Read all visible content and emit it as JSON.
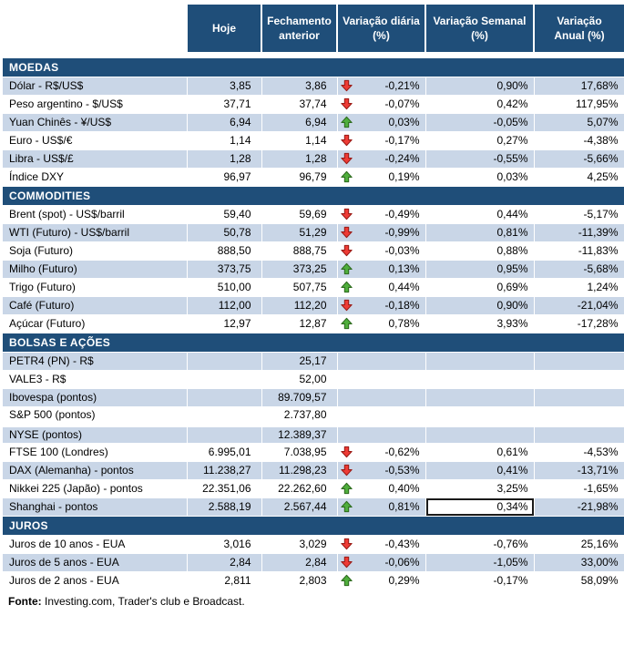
{
  "header": {
    "columns": [
      "Hoje",
      "Fechamento\nanterior",
      "Variação diária\n(%)",
      "Variação Semanal\n(%)",
      "Variação\nAnual (%)"
    ]
  },
  "sections": [
    {
      "title": "MOEDAS",
      "band_start": "shaded",
      "rows": [
        {
          "label": "Dólar - R$/US$",
          "hoje": "3,85",
          "fechamento": "3,86",
          "arrow": "down",
          "diaria": "-0,21%",
          "semanal": "0,90%",
          "anual": "17,68%"
        },
        {
          "label": "Peso argentino - $/US$",
          "hoje": "37,71",
          "fechamento": "37,74",
          "arrow": "down",
          "diaria": "-0,07%",
          "semanal": "0,42%",
          "anual": "117,95%"
        },
        {
          "label": "Yuan Chinês - ¥/US$",
          "hoje": "6,94",
          "fechamento": "6,94",
          "arrow": "up",
          "diaria": "0,03%",
          "semanal": "-0,05%",
          "anual": "5,07%"
        },
        {
          "label": "Euro - US$/€",
          "hoje": "1,14",
          "fechamento": "1,14",
          "arrow": "down",
          "diaria": "-0,17%",
          "semanal": "0,27%",
          "anual": "-4,38%"
        },
        {
          "label": "Libra - US$/£",
          "hoje": "1,28",
          "fechamento": "1,28",
          "arrow": "down",
          "diaria": "-0,24%",
          "semanal": "-0,55%",
          "anual": "-5,66%"
        },
        {
          "label": "Índice DXY",
          "hoje": "96,97",
          "fechamento": "96,79",
          "arrow": "up",
          "diaria": "0,19%",
          "semanal": "0,03%",
          "anual": "4,25%"
        }
      ]
    },
    {
      "title": "COMMODITIES",
      "band_start": "plain",
      "rows": [
        {
          "label": "Brent (spot) - US$/barril",
          "hoje": "59,40",
          "fechamento": "59,69",
          "arrow": "down",
          "diaria": "-0,49%",
          "semanal": "0,44%",
          "anual": "-5,17%"
        },
        {
          "label": "WTI (Futuro) - US$/barril",
          "hoje": "50,78",
          "fechamento": "51,29",
          "arrow": "down",
          "diaria": "-0,99%",
          "semanal": "0,81%",
          "anual": "-11,39%"
        },
        {
          "label": "Soja (Futuro)",
          "hoje": "888,50",
          "fechamento": "888,75",
          "arrow": "down",
          "diaria": "-0,03%",
          "semanal": "0,88%",
          "anual": "-11,83%"
        },
        {
          "label": "Milho (Futuro)",
          "hoje": "373,75",
          "fechamento": "373,25",
          "arrow": "up",
          "diaria": "0,13%",
          "semanal": "0,95%",
          "anual": "-5,68%"
        },
        {
          "label": "Trigo (Futuro)",
          "hoje": "510,00",
          "fechamento": "507,75",
          "arrow": "up",
          "diaria": "0,44%",
          "semanal": "0,69%",
          "anual": "1,24%"
        },
        {
          "label": "Café (Futuro)",
          "hoje": "112,00",
          "fechamento": "112,20",
          "arrow": "down",
          "diaria": "-0,18%",
          "semanal": "0,90%",
          "anual": "-21,04%"
        },
        {
          "label": "Açúcar (Futuro)",
          "hoje": "12,97",
          "fechamento": "12,87",
          "arrow": "up",
          "diaria": "0,78%",
          "semanal": "3,93%",
          "anual": "-17,28%"
        }
      ]
    },
    {
      "title": "BOLSAS E AÇÕES",
      "band_start": "shaded",
      "rows": [
        {
          "label": "PETR4 (PN) - R$",
          "hoje": "",
          "fechamento": "25,17",
          "arrow": "",
          "diaria": "",
          "semanal": "",
          "anual": ""
        },
        {
          "label": "VALE3 - R$",
          "hoje": "",
          "fechamento": "52,00",
          "arrow": "",
          "diaria": "",
          "semanal": "",
          "anual": ""
        },
        {
          "label": "Ibovespa (pontos)",
          "hoje": "",
          "fechamento": "89.709,57",
          "arrow": "",
          "diaria": "",
          "semanal": "",
          "anual": ""
        },
        {
          "label": "S&P 500 (pontos)",
          "hoje": "",
          "fechamento": "2.737,80",
          "arrow": "",
          "diaria": "",
          "semanal": "",
          "anual": ""
        },
        {
          "label": "NYSE (pontos)",
          "hoje": "",
          "fechamento": "12.389,37",
          "arrow": "",
          "diaria": "",
          "semanal": "",
          "anual": "",
          "gap_before": true
        },
        {
          "label": "FTSE 100 (Londres)",
          "hoje": "6.995,01",
          "fechamento": "7.038,95",
          "arrow": "down",
          "diaria": "-0,62%",
          "semanal": "0,61%",
          "anual": "-4,53%"
        },
        {
          "label": "DAX (Alemanha) - pontos",
          "hoje": "11.238,27",
          "fechamento": "11.298,23",
          "arrow": "down",
          "diaria": "-0,53%",
          "semanal": "0,41%",
          "anual": "-13,71%"
        },
        {
          "label": "Nikkei 225 (Japão) - pontos",
          "hoje": "22.351,06",
          "fechamento": "22.262,60",
          "arrow": "up",
          "diaria": "0,40%",
          "semanal": "3,25%",
          "anual": "-1,65%"
        },
        {
          "label": "Shanghai - pontos",
          "hoje": "2.588,19",
          "fechamento": "2.567,44",
          "arrow": "up",
          "diaria": "0,81%",
          "semanal": "0,34%",
          "anual": "-21,98%"
        }
      ]
    },
    {
      "title": "JUROS",
      "band_start": "plain",
      "rows": [
        {
          "label": "Juros de 10 anos - EUA",
          "hoje": "3,016",
          "fechamento": "3,029",
          "arrow": "down",
          "diaria": "-0,43%",
          "semanal": "-0,76%",
          "anual": "25,16%"
        },
        {
          "label": "Juros de 5 anos - EUA",
          "hoje": "2,84",
          "fechamento": "2,84",
          "arrow": "down",
          "diaria": "-0,06%",
          "semanal": "-1,05%",
          "anual": "33,00%"
        },
        {
          "label": "Juros de 2 anos - EUA",
          "hoje": "2,811",
          "fechamento": "2,803",
          "arrow": "up",
          "diaria": "0,29%",
          "semanal": "-0,17%",
          "anual": "58,09%"
        }
      ]
    }
  ],
  "selection": {
    "section": "BOLSAS E AÇÕES",
    "row": "Shanghai - pontos",
    "column": "semanal"
  },
  "footer": {
    "label": "Fonte:",
    "text": " Investing.com, Trader's club e Broadcast."
  },
  "colors": {
    "header_bg": "#1F4E79",
    "band_bg": "#C9D6E7",
    "selection_border": "#1A1A1A",
    "arrow_up_fill": "#4FAE3C",
    "arrow_up_stroke": "#2E6B1F",
    "arrow_down_fill": "#EE3B35",
    "arrow_down_stroke": "#9A1C17"
  }
}
